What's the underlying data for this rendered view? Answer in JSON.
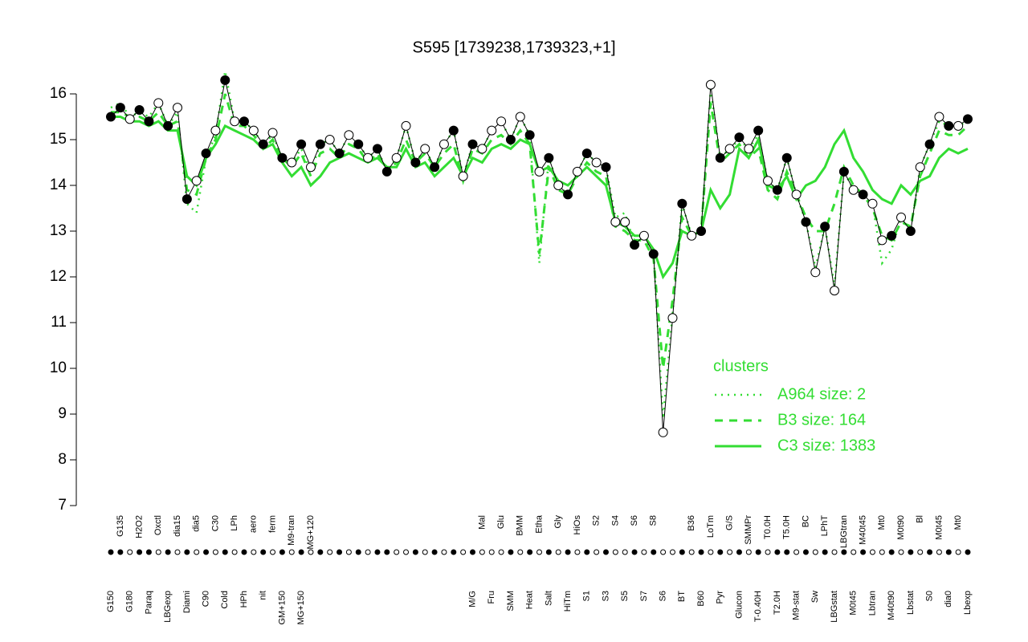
{
  "chart_data": {
    "type": "line",
    "title": "S595 [1739238,1739323,+1]",
    "categories": [
      "G150",
      "G135",
      "G180",
      "H2O2",
      "Paraq",
      "Oxctl",
      "LBGexp",
      "dia15",
      "Diami",
      "dia5",
      "C90",
      "C30",
      "Cold",
      "LPh",
      "HPh",
      "aero",
      "nit",
      "ferm",
      "GM+150",
      "M9-tran",
      "MG+150",
      "MG+120",
      null,
      null,
      null,
      null,
      null,
      null,
      null,
      null,
      null,
      null,
      null,
      null,
      null,
      null,
      null,
      null,
      "M/G",
      "Mal",
      "Fru",
      "Glu",
      "SMM",
      "BMM",
      "Heat",
      "Etha",
      "Salt",
      "Gly",
      "HiTm",
      "HiOs",
      "S1",
      "S2",
      "S3",
      "S4",
      "S5",
      "S6",
      "S7",
      "S8",
      "S6",
      null,
      "BT",
      "B36",
      "B60",
      "LoTm",
      "Pyr",
      "G/S",
      "Glucon",
      "SMMPr",
      "T-0.40H",
      "T0.0H",
      "T2.0H",
      "T5.0H",
      "M9-stat",
      "BC",
      "Sw",
      "LPhT",
      "LBGstat",
      "LBGtran",
      "M0t45",
      "M40t45",
      "Lbtran",
      "Mt0",
      "M40t90",
      "M0t90",
      "Lbstat",
      "Bl",
      "S0",
      "M0t45",
      "dia0",
      "Mt0",
      "Lbexp"
    ],
    "series": [
      {
        "color": "#000000",
        "marker_filled": [
          1,
          1,
          0,
          1,
          1,
          0,
          1,
          0,
          1,
          0,
          1,
          0,
          1,
          0,
          1,
          0,
          1,
          0,
          1,
          0,
          1,
          0,
          1,
          0,
          1,
          0,
          1,
          0,
          1,
          1,
          0,
          0,
          1,
          0,
          1,
          0,
          1,
          0,
          1,
          0,
          0,
          0,
          1,
          0,
          1,
          0,
          1,
          0,
          1,
          0,
          1,
          0,
          1,
          0,
          0,
          1,
          0,
          1,
          0,
          0,
          1,
          0,
          1,
          0,
          1,
          0,
          1,
          0,
          1,
          0,
          1,
          1,
          0,
          1,
          0,
          1,
          0,
          1,
          0,
          1,
          0,
          0,
          1,
          0,
          1,
          0,
          1,
          0,
          1,
          0,
          1
        ],
        "values": [
          15.5,
          15.7,
          15.45,
          15.65,
          15.4,
          15.8,
          15.3,
          15.7,
          13.7,
          14.1,
          14.7,
          15.2,
          16.3,
          15.4,
          15.4,
          15.2,
          14.9,
          15.15,
          14.6,
          14.5,
          14.9,
          14.4,
          14.9,
          15.0,
          14.7,
          15.1,
          14.9,
          14.6,
          14.8,
          14.3,
          14.6,
          15.3,
          14.5,
          14.8,
          14.4,
          14.9,
          15.2,
          14.2,
          14.9,
          14.8,
          15.2,
          15.4,
          15.0,
          15.5,
          15.1,
          14.3,
          14.6,
          14.0,
          13.8,
          14.3,
          14.7,
          14.5,
          14.4,
          13.2,
          13.2,
          12.7,
          12.9,
          12.5,
          8.6,
          11.1,
          13.6,
          12.9,
          13.0,
          16.2,
          14.6,
          14.8,
          15.05,
          14.8,
          15.2,
          14.1,
          13.9,
          14.6,
          13.8,
          13.2,
          12.1,
          13.1,
          11.7,
          14.3,
          13.9,
          13.8,
          13.6,
          12.8,
          12.9,
          13.3,
          13.0,
          14.4,
          14.9,
          15.5,
          15.3,
          15.3,
          15.45
        ]
      },
      {
        "name": "A964 size: 2",
        "color": "#33dd33",
        "dash": "dotted",
        "values": [
          15.7,
          15.8,
          15.5,
          15.6,
          15.5,
          15.8,
          15.3,
          15.6,
          13.6,
          13.4,
          14.6,
          15.1,
          16.5,
          15.4,
          15.4,
          15.2,
          14.9,
          15.1,
          14.6,
          14.5,
          14.8,
          14.3,
          14.9,
          15.0,
          14.7,
          15.1,
          14.9,
          14.6,
          14.8,
          14.3,
          14.6,
          15.3,
          14.5,
          14.8,
          14.4,
          14.9,
          15.2,
          14.2,
          14.9,
          14.8,
          15.2,
          15.4,
          15.0,
          15.5,
          15.1,
          12.3,
          14.6,
          14.0,
          13.8,
          14.3,
          14.7,
          14.5,
          14.4,
          13.3,
          13.4,
          12.7,
          12.9,
          12.5,
          8.9,
          11.2,
          13.6,
          12.9,
          13.0,
          16.1,
          14.6,
          14.8,
          15.0,
          14.8,
          15.1,
          14.1,
          13.9,
          14.6,
          13.8,
          13.2,
          12.2,
          13.1,
          11.8,
          14.3,
          13.9,
          13.8,
          13.6,
          12.3,
          12.6,
          13.3,
          13.0,
          14.4,
          14.9,
          15.4,
          15.3,
          15.3,
          15.4
        ]
      },
      {
        "name": "B3 size: 164",
        "color": "#33dd33",
        "dash": "dashed",
        "values": [
          15.6,
          15.6,
          15.5,
          15.5,
          15.4,
          15.6,
          15.3,
          15.4,
          13.9,
          13.8,
          14.6,
          15.0,
          16.0,
          15.3,
          15.3,
          15.1,
          14.8,
          15.0,
          14.6,
          14.4,
          14.7,
          14.2,
          14.7,
          14.8,
          14.6,
          14.9,
          14.8,
          14.5,
          14.7,
          14.3,
          14.5,
          15.0,
          14.5,
          14.7,
          14.4,
          14.7,
          14.9,
          14.1,
          14.8,
          14.7,
          15.0,
          15.1,
          14.9,
          15.2,
          14.9,
          12.5,
          14.4,
          13.9,
          13.8,
          14.2,
          14.5,
          14.3,
          14.2,
          13.1,
          13.0,
          12.8,
          12.8,
          12.4,
          10.0,
          11.5,
          13.3,
          12.9,
          13.0,
          15.8,
          14.5,
          14.7,
          14.9,
          14.6,
          14.8,
          13.9,
          13.7,
          14.3,
          13.8,
          13.3,
          13.0,
          13.0,
          13.6,
          14.4,
          14.0,
          13.8,
          13.5,
          12.9,
          12.8,
          13.2,
          13.1,
          14.2,
          14.7,
          15.2,
          15.1,
          15.1,
          15.3
        ]
      },
      {
        "name": "C3 size: 1383",
        "color": "#33dd33",
        "dash": "solid",
        "values": [
          15.5,
          15.5,
          15.4,
          15.4,
          15.3,
          15.4,
          15.2,
          15.2,
          14.2,
          14.0,
          14.6,
          14.9,
          15.3,
          15.2,
          15.1,
          15.0,
          14.8,
          14.9,
          14.5,
          14.2,
          14.4,
          14.0,
          14.2,
          14.5,
          14.6,
          14.7,
          14.6,
          14.5,
          14.6,
          14.4,
          14.4,
          14.8,
          14.4,
          14.5,
          14.2,
          14.4,
          14.6,
          14.2,
          14.6,
          14.5,
          14.8,
          14.9,
          14.8,
          15.0,
          14.9,
          14.3,
          14.4,
          14.1,
          14.0,
          14.2,
          14.4,
          14.2,
          14.0,
          13.2,
          13.1,
          12.9,
          12.9,
          12.6,
          12.0,
          12.3,
          13.0,
          12.9,
          13.0,
          13.9,
          13.5,
          13.8,
          14.8,
          14.6,
          15.0,
          14.0,
          13.9,
          14.2,
          13.7,
          14.0,
          14.1,
          14.4,
          14.9,
          15.2,
          14.6,
          14.3,
          13.9,
          13.7,
          13.6,
          14.0,
          13.8,
          14.1,
          14.2,
          14.6,
          14.8,
          14.7,
          14.8
        ]
      }
    ],
    "legend_title": "clusters",
    "ylim": [
      7,
      16
    ],
    "yticks": [
      7,
      8,
      9,
      10,
      11,
      12,
      13,
      14,
      15,
      16
    ]
  }
}
